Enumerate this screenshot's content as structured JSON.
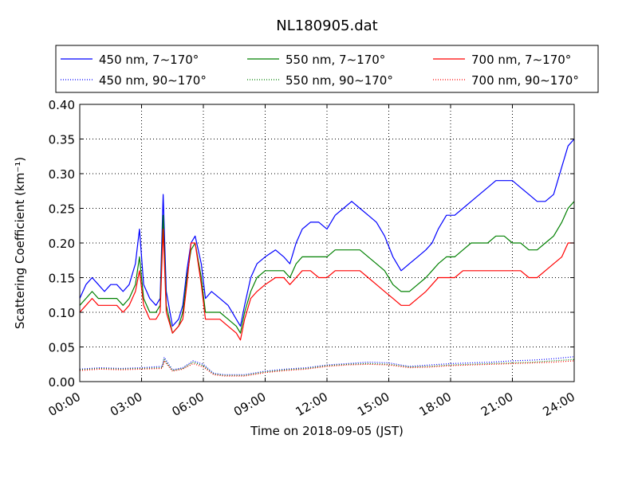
{
  "chart_data": {
    "type": "line",
    "title": "NL180905.dat",
    "xlabel": "Time on 2018-09-05 (JST)",
    "ylabel": "Scattering Coefficient (km⁻¹)",
    "xlim": [
      0,
      24
    ],
    "ylim": [
      0.0,
      0.4
    ],
    "x_unit": "hours",
    "grid": true,
    "legend_position": "top",
    "x_ticks": [
      {
        "value": 0,
        "label": "00:00"
      },
      {
        "value": 3,
        "label": "03:00"
      },
      {
        "value": 6,
        "label": "06:00"
      },
      {
        "value": 9,
        "label": "09:00"
      },
      {
        "value": 12,
        "label": "12:00"
      },
      {
        "value": 15,
        "label": "15:00"
      },
      {
        "value": 18,
        "label": "18:00"
      },
      {
        "value": 21,
        "label": "21:00"
      },
      {
        "value": 24,
        "label": "24:00"
      }
    ],
    "y_ticks": [
      {
        "value": 0.0,
        "label": "0.00"
      },
      {
        "value": 0.05,
        "label": "0.05"
      },
      {
        "value": 0.1,
        "label": "0.10"
      },
      {
        "value": 0.15,
        "label": "0.15"
      },
      {
        "value": 0.2,
        "label": "0.20"
      },
      {
        "value": 0.25,
        "label": "0.25"
      },
      {
        "value": 0.3,
        "label": "0.30"
      },
      {
        "value": 0.35,
        "label": "0.35"
      },
      {
        "value": 0.4,
        "label": "0.40"
      }
    ],
    "series": [
      {
        "name": "450 nm, 7∼170°",
        "color": "#0000ff",
        "style": "solid",
        "x": [
          0,
          0.3,
          0.6,
          0.9,
          1.2,
          1.5,
          1.8,
          2.1,
          2.4,
          2.7,
          2.9,
          3.1,
          3.4,
          3.7,
          3.9,
          4.05,
          4.2,
          4.5,
          4.8,
          5.0,
          5.2,
          5.4,
          5.6,
          5.9,
          6.1,
          6.4,
          6.8,
          7.2,
          7.6,
          7.8,
          8.0,
          8.3,
          8.6,
          9.0,
          9.5,
          9.9,
          10.2,
          10.5,
          10.8,
          11.2,
          11.6,
          12.0,
          12.4,
          12.8,
          13.2,
          13.6,
          14.0,
          14.4,
          14.8,
          15.2,
          15.6,
          16.0,
          16.4,
          16.8,
          17.1,
          17.4,
          17.8,
          18.2,
          18.6,
          19.0,
          19.4,
          19.8,
          20.2,
          20.6,
          21.0,
          21.4,
          21.8,
          22.2,
          22.6,
          23.0,
          23.4,
          23.7,
          24.0
        ],
        "y": [
          0.12,
          0.14,
          0.15,
          0.14,
          0.13,
          0.14,
          0.14,
          0.13,
          0.14,
          0.17,
          0.22,
          0.14,
          0.12,
          0.11,
          0.12,
          0.27,
          0.13,
          0.08,
          0.09,
          0.11,
          0.16,
          0.2,
          0.21,
          0.17,
          0.12,
          0.13,
          0.12,
          0.11,
          0.09,
          0.08,
          0.11,
          0.15,
          0.17,
          0.18,
          0.19,
          0.18,
          0.17,
          0.2,
          0.22,
          0.23,
          0.23,
          0.22,
          0.24,
          0.25,
          0.26,
          0.25,
          0.24,
          0.23,
          0.21,
          0.18,
          0.16,
          0.17,
          0.18,
          0.19,
          0.2,
          0.22,
          0.24,
          0.24,
          0.25,
          0.26,
          0.27,
          0.28,
          0.29,
          0.29,
          0.29,
          0.28,
          0.27,
          0.26,
          0.26,
          0.27,
          0.31,
          0.34,
          0.35
        ]
      },
      {
        "name": "550 nm, 7∼170°",
        "color": "#008000",
        "style": "solid",
        "x": [
          0,
          0.3,
          0.6,
          0.9,
          1.2,
          1.5,
          1.8,
          2.1,
          2.4,
          2.7,
          2.9,
          3.1,
          3.4,
          3.7,
          3.9,
          4.05,
          4.2,
          4.5,
          4.8,
          5.0,
          5.2,
          5.4,
          5.6,
          5.9,
          6.1,
          6.4,
          6.8,
          7.2,
          7.6,
          7.8,
          8.0,
          8.3,
          8.6,
          9.0,
          9.5,
          9.9,
          10.2,
          10.5,
          10.8,
          11.2,
          11.6,
          12.0,
          12.4,
          12.8,
          13.2,
          13.6,
          14.0,
          14.4,
          14.8,
          15.2,
          15.6,
          16.0,
          16.4,
          16.8,
          17.1,
          17.4,
          17.8,
          18.2,
          18.6,
          19.0,
          19.4,
          19.8,
          20.2,
          20.6,
          21.0,
          21.4,
          21.8,
          22.2,
          22.6,
          23.0,
          23.4,
          23.7,
          24.0
        ],
        "y": [
          0.11,
          0.12,
          0.13,
          0.12,
          0.12,
          0.12,
          0.12,
          0.11,
          0.12,
          0.14,
          0.18,
          0.12,
          0.1,
          0.1,
          0.11,
          0.24,
          0.11,
          0.07,
          0.08,
          0.1,
          0.15,
          0.19,
          0.2,
          0.15,
          0.1,
          0.1,
          0.1,
          0.09,
          0.08,
          0.07,
          0.1,
          0.13,
          0.15,
          0.16,
          0.16,
          0.16,
          0.15,
          0.17,
          0.18,
          0.18,
          0.18,
          0.18,
          0.19,
          0.19,
          0.19,
          0.19,
          0.18,
          0.17,
          0.16,
          0.14,
          0.13,
          0.13,
          0.14,
          0.15,
          0.16,
          0.17,
          0.18,
          0.18,
          0.19,
          0.2,
          0.2,
          0.2,
          0.21,
          0.21,
          0.2,
          0.2,
          0.19,
          0.19,
          0.2,
          0.21,
          0.23,
          0.25,
          0.26
        ]
      },
      {
        "name": "700 nm, 7∼170°",
        "color": "#ff0000",
        "style": "solid",
        "x": [
          0,
          0.3,
          0.6,
          0.9,
          1.2,
          1.5,
          1.8,
          2.1,
          2.4,
          2.7,
          2.9,
          3.1,
          3.4,
          3.7,
          3.9,
          4.05,
          4.2,
          4.5,
          4.8,
          5.0,
          5.2,
          5.4,
          5.6,
          5.9,
          6.1,
          6.4,
          6.8,
          7.2,
          7.6,
          7.8,
          8.0,
          8.3,
          8.6,
          9.0,
          9.5,
          9.9,
          10.2,
          10.5,
          10.8,
          11.2,
          11.6,
          12.0,
          12.4,
          12.8,
          13.2,
          13.6,
          14.0,
          14.4,
          14.8,
          15.2,
          15.6,
          16.0,
          16.4,
          16.8,
          17.1,
          17.4,
          17.8,
          18.2,
          18.6,
          19.0,
          19.4,
          19.8,
          20.2,
          20.6,
          21.0,
          21.4,
          21.8,
          22.2,
          22.6,
          23.0,
          23.4,
          23.7,
          24.0
        ],
        "y": [
          0.1,
          0.11,
          0.12,
          0.11,
          0.11,
          0.11,
          0.11,
          0.1,
          0.11,
          0.13,
          0.16,
          0.11,
          0.09,
          0.09,
          0.1,
          0.22,
          0.1,
          0.07,
          0.08,
          0.09,
          0.14,
          0.2,
          0.2,
          0.14,
          0.09,
          0.09,
          0.09,
          0.08,
          0.07,
          0.06,
          0.09,
          0.12,
          0.13,
          0.14,
          0.15,
          0.15,
          0.14,
          0.15,
          0.16,
          0.16,
          0.15,
          0.15,
          0.16,
          0.16,
          0.16,
          0.16,
          0.15,
          0.14,
          0.13,
          0.12,
          0.11,
          0.11,
          0.12,
          0.13,
          0.14,
          0.15,
          0.15,
          0.15,
          0.16,
          0.16,
          0.16,
          0.16,
          0.16,
          0.16,
          0.16,
          0.16,
          0.15,
          0.15,
          0.16,
          0.17,
          0.18,
          0.2,
          0.2
        ]
      },
      {
        "name": "450 nm, 90∼170°",
        "color": "#0000ff",
        "style": "dotted",
        "x": [
          0,
          1,
          2,
          3,
          4,
          4.1,
          4.5,
          5,
          5.5,
          6,
          6.5,
          7,
          8,
          9,
          10,
          11,
          12,
          13,
          14,
          15,
          16,
          17,
          18,
          19,
          20,
          21,
          22,
          23,
          24
        ],
        "y": [
          0.018,
          0.02,
          0.019,
          0.02,
          0.022,
          0.035,
          0.017,
          0.02,
          0.03,
          0.025,
          0.012,
          0.01,
          0.01,
          0.015,
          0.018,
          0.02,
          0.024,
          0.026,
          0.028,
          0.027,
          0.022,
          0.024,
          0.026,
          0.027,
          0.028,
          0.03,
          0.031,
          0.033,
          0.036
        ]
      },
      {
        "name": "550 nm, 90∼170°",
        "color": "#008000",
        "style": "dotted",
        "x": [
          0,
          1,
          2,
          3,
          4,
          4.1,
          4.5,
          5,
          5.5,
          6,
          6.5,
          7,
          8,
          9,
          10,
          11,
          12,
          13,
          14,
          15,
          16,
          17,
          18,
          19,
          20,
          21,
          22,
          23,
          24
        ],
        "y": [
          0.017,
          0.019,
          0.018,
          0.019,
          0.02,
          0.032,
          0.016,
          0.019,
          0.028,
          0.023,
          0.011,
          0.009,
          0.009,
          0.014,
          0.017,
          0.019,
          0.023,
          0.025,
          0.026,
          0.025,
          0.021,
          0.022,
          0.024,
          0.025,
          0.026,
          0.027,
          0.028,
          0.03,
          0.032
        ]
      },
      {
        "name": "700 nm, 90∼170°",
        "color": "#ff0000",
        "style": "dotted",
        "x": [
          0,
          1,
          2,
          3,
          4,
          4.1,
          4.5,
          5,
          5.5,
          6,
          6.5,
          7,
          8,
          9,
          10,
          11,
          12,
          13,
          14,
          15,
          16,
          17,
          18,
          19,
          20,
          21,
          22,
          23,
          24
        ],
        "y": [
          0.016,
          0.018,
          0.017,
          0.018,
          0.019,
          0.03,
          0.015,
          0.018,
          0.026,
          0.021,
          0.01,
          0.008,
          0.008,
          0.013,
          0.016,
          0.018,
          0.022,
          0.024,
          0.025,
          0.024,
          0.02,
          0.021,
          0.023,
          0.024,
          0.025,
          0.026,
          0.027,
          0.028,
          0.03
        ]
      }
    ]
  }
}
